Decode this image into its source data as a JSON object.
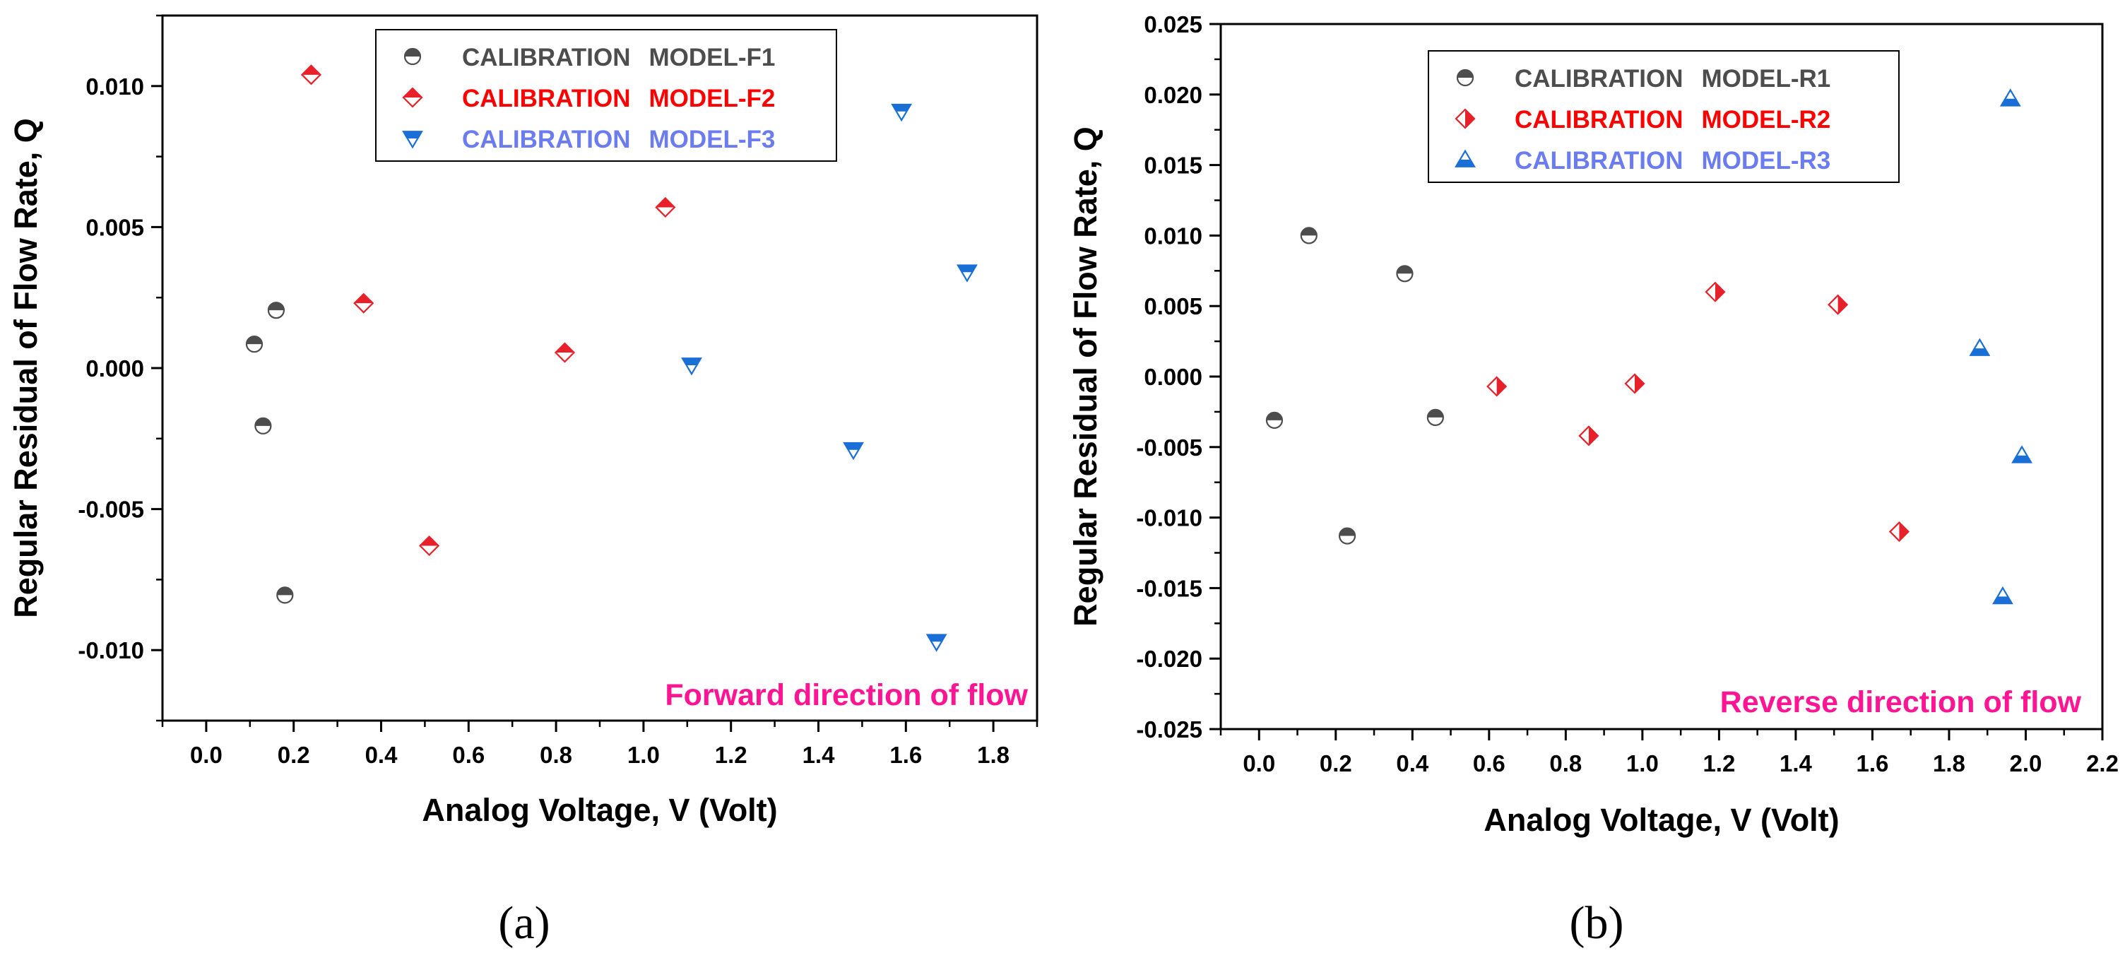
{
  "colors": {
    "model1": "#4d4d4d",
    "model2": "#e8202a",
    "model2_text": "#ff0000",
    "model3": "#1a6fd6",
    "model3_text": "#6b7cf0",
    "annotation": "#ff1493"
  },
  "chart_data": [
    {
      "type": "scatter",
      "panel_label": "(a)",
      "xlabel": "Analog Voltage, V (Volt)",
      "ylabel": "Regular Residual of Flow Rate, Q",
      "xlim": [
        -0.1,
        1.9
      ],
      "ylim": [
        -0.0125,
        0.0125
      ],
      "x_ticks": [
        0.0,
        0.2,
        0.4,
        0.6,
        0.8,
        1.0,
        1.2,
        1.4,
        1.6,
        1.8
      ],
      "x_tick_labels": [
        "0.0",
        "0.2",
        "0.4",
        "0.6",
        "0.8",
        "1.0",
        "1.2",
        "1.4",
        "1.6",
        "1.8"
      ],
      "y_ticks": [
        -0.01,
        -0.005,
        0.0,
        0.005,
        0.01
      ],
      "y_tick_labels": [
        "-0.010",
        "-0.005",
        "0.000",
        "0.005",
        "0.010"
      ],
      "annotation": "Forward direction of flow",
      "legend_position": "top-center",
      "series": [
        {
          "label_prefix": "CALIBRATION",
          "label_model": "MODEL-F1",
          "marker": "circle-half",
          "color_key": "model1",
          "text_color_key": "model1",
          "x": [
            0.11,
            0.13,
            0.16,
            0.18
          ],
          "y": [
            0.00085,
            -0.00205,
            0.00205,
            -0.00805
          ]
        },
        {
          "label_prefix": "CALIBRATION",
          "label_model": "MODEL-F2",
          "marker": "diamond-half",
          "color_key": "model2",
          "text_color_key": "model2_text",
          "x": [
            0.24,
            0.36,
            0.51,
            0.82,
            1.05
          ],
          "y": [
            0.0104,
            0.0023,
            -0.0063,
            0.00055,
            0.0057
          ]
        },
        {
          "label_prefix": "CALIBRATION",
          "label_model": "MODEL-F3",
          "marker": "triangle-down-half",
          "color_key": "model3",
          "text_color_key": "model3_text",
          "x": [
            1.11,
            1.48,
            1.59,
            1.67,
            1.74
          ],
          "y": [
            0.0001,
            -0.0029,
            0.0091,
            -0.0097,
            0.0034
          ]
        }
      ]
    },
    {
      "type": "scatter",
      "panel_label": "(b)",
      "xlabel": "Analog Voltage, V (Volt)",
      "ylabel": "Regular Residual of Flow Rate, Q",
      "xlim": [
        -0.1,
        2.2
      ],
      "ylim": [
        -0.025,
        0.025
      ],
      "x_ticks": [
        0.0,
        0.2,
        0.4,
        0.6,
        0.8,
        1.0,
        1.2,
        1.4,
        1.6,
        1.8,
        2.0,
        2.2
      ],
      "x_tick_labels": [
        "0.0",
        "0.2",
        "0.4",
        "0.6",
        "0.8",
        "1.0",
        "1.2",
        "1.4",
        "1.6",
        "1.8",
        "2.0",
        "2.2"
      ],
      "y_ticks": [
        -0.025,
        -0.02,
        -0.015,
        -0.01,
        -0.005,
        0.0,
        0.005,
        0.01,
        0.015,
        0.02,
        0.025
      ],
      "y_tick_labels": [
        "-0.025",
        "-0.020",
        "-0.015",
        "-0.010",
        "-0.005",
        "0.000",
        "0.005",
        "0.010",
        "0.015",
        "0.020",
        "0.025"
      ],
      "annotation": "Reverse direction of flow",
      "legend_position": "top-center",
      "series": [
        {
          "label_prefix": "CALIBRATION",
          "label_model": "MODEL-R1",
          "marker": "circle-half",
          "color_key": "model1",
          "text_color_key": "model1",
          "x": [
            0.04,
            0.13,
            0.23,
            0.38,
            0.46
          ],
          "y": [
            -0.0031,
            0.01,
            -0.0113,
            0.0073,
            -0.0029
          ]
        },
        {
          "label_prefix": "CALIBRATION",
          "label_model": "MODEL-R2",
          "marker": "diamond-halfv",
          "color_key": "model2",
          "text_color_key": "model2_text",
          "x": [
            0.62,
            0.86,
            0.98,
            1.19,
            1.51,
            1.67
          ],
          "y": [
            -0.0007,
            -0.0042,
            -0.0005,
            0.006,
            0.0051,
            -0.011
          ]
        },
        {
          "label_prefix": "CALIBRATION",
          "label_model": "MODEL-R3",
          "marker": "triangle-up-half",
          "color_key": "model3",
          "text_color_key": "model3_text",
          "x": [
            1.88,
            1.94,
            1.96,
            1.99
          ],
          "y": [
            0.002,
            -0.0156,
            0.0197,
            -0.0056
          ]
        }
      ]
    }
  ]
}
